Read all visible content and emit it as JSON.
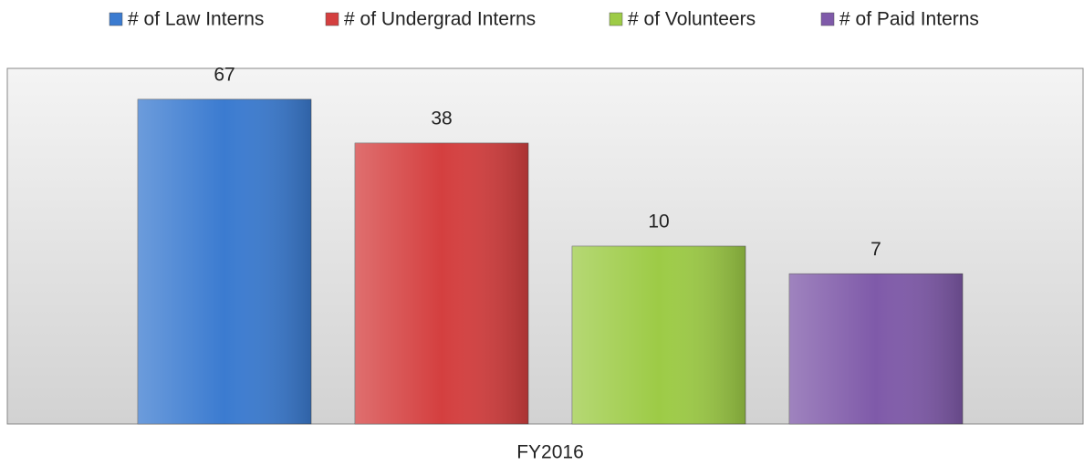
{
  "chart_data": {
    "type": "bar",
    "categories": [
      "FY2016"
    ],
    "series": [
      {
        "name": "# of Law Interns",
        "color": "#3b7bd0",
        "values": [
          67
        ]
      },
      {
        "name": "# of Undergrad Interns",
        "color": "#d43f3f",
        "values": [
          38
        ]
      },
      {
        "name": "# of Volunteers",
        "color": "#9dcb46",
        "values": [
          10
        ]
      },
      {
        "name": "# of Paid Interns",
        "color": "#7f5aa9",
        "values": [
          7
        ]
      }
    ],
    "ylim": [
      1,
      100
    ],
    "log": true,
    "legend": "top"
  }
}
